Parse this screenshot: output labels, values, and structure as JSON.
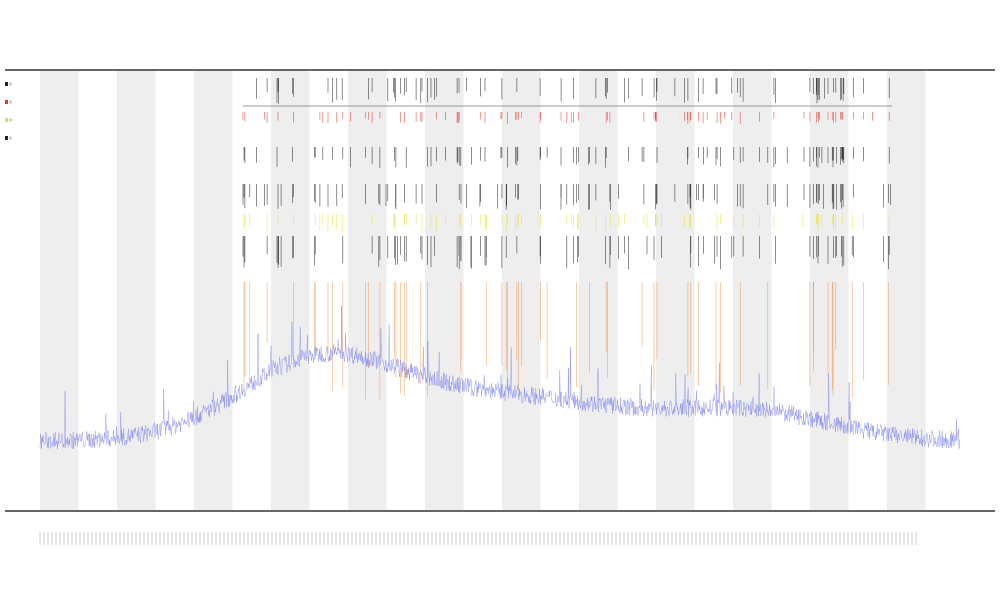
{
  "header": {
    "line1": "",
    "line2": "",
    "line3": ""
  },
  "chart_data": {
    "type": "line",
    "title": "",
    "xlabel": "",
    "ylabel": "",
    "grid": false,
    "legend_position": "left",
    "colors": {
      "signal": "#7b80ef",
      "bands": "#eeeeee",
      "frame": "#333333",
      "event_black": "#222222",
      "event_red": "#e23b2e",
      "event_yellow": "#e6e23a",
      "event_orange": "#ef8a35"
    },
    "event_tracks": [
      "black",
      "red",
      "black",
      "black",
      "yellow",
      "black",
      "orange"
    ],
    "series": [
      {
        "values": []
      }
    ]
  }
}
